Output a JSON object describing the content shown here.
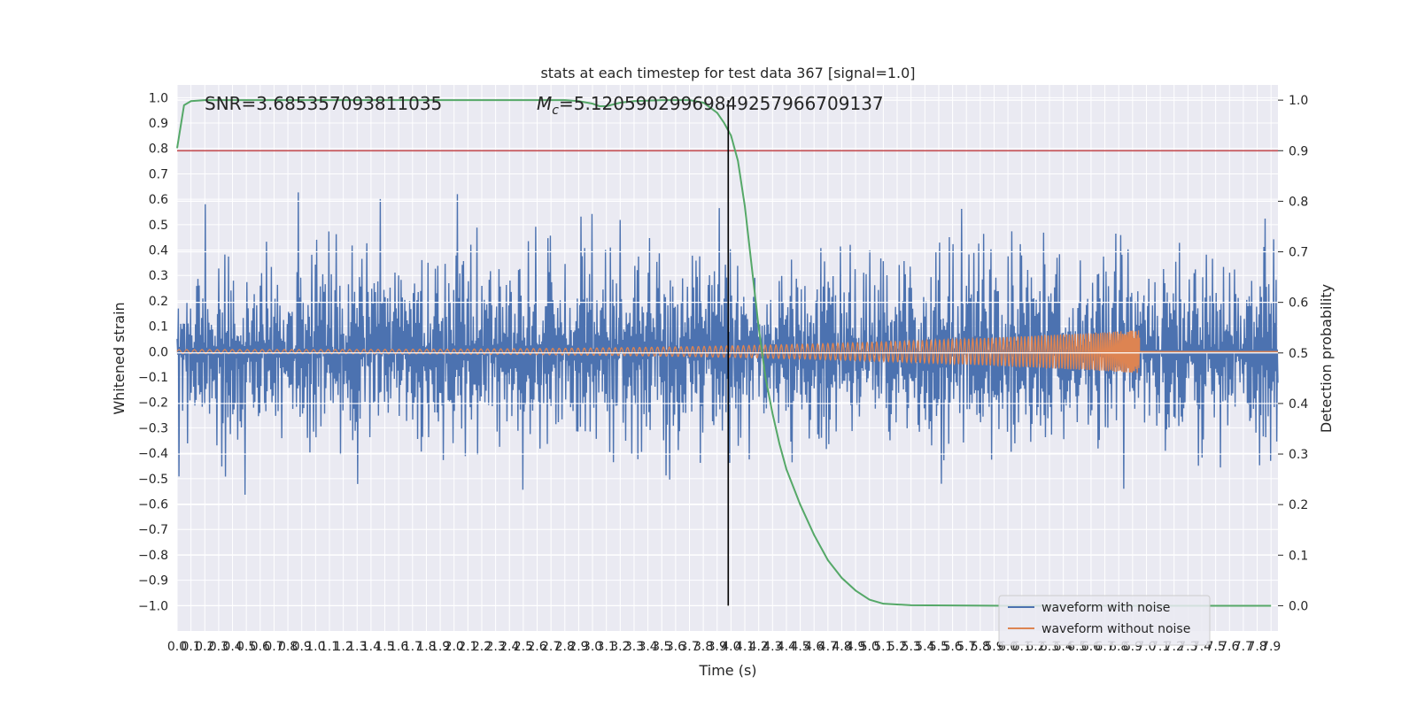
{
  "chart_data": {
    "type": "line",
    "title": "stats at each timestep for test data 367 [signal=1.0]",
    "xlabel": "Time (s)",
    "ylabel": "Whitened strain",
    "ylabel_right": "Detection probability",
    "xlim": [
      0.0,
      7.95
    ],
    "ylim": [
      -1.1,
      1.05
    ],
    "ylim_right": [
      -0.05,
      1.03
    ],
    "x_ticks": [
      "0.0",
      "0.1",
      "0.2",
      "0.3",
      "0.4",
      "0.5",
      "0.6",
      "0.7",
      "0.8",
      "0.9",
      "1.0",
      "1.1",
      "1.2",
      "1.3",
      "1.4",
      "1.5",
      "1.6",
      "1.7",
      "1.8",
      "1.9",
      "2.0",
      "2.1",
      "2.2",
      "2.3",
      "2.4",
      "2.5",
      "2.6",
      "2.7",
      "2.8",
      "2.9",
      "3.0",
      "3.1",
      "3.2",
      "3.3",
      "3.4",
      "3.5",
      "3.6",
      "3.7",
      "3.8",
      "3.9",
      "4.0",
      "4.1",
      "4.2",
      "4.3",
      "4.4",
      "4.5",
      "4.6",
      "4.7",
      "4.8",
      "4.9",
      "5.0",
      "5.1",
      "5.2",
      "5.3",
      "5.4",
      "5.5",
      "5.6",
      "5.7",
      "5.8",
      "5.9",
      "6.0",
      "6.1",
      "6.2",
      "6.3",
      "6.4",
      "6.5",
      "6.6",
      "6.7",
      "6.8",
      "6.9",
      "7.0",
      "7.1",
      "7.2",
      "7.3",
      "7.4",
      "7.5",
      "7.6",
      "7.7",
      "7.8",
      "7.9"
    ],
    "y_ticks": [
      "1.0",
      "0.9",
      "0.8",
      "0.7",
      "0.6",
      "0.5",
      "0.4",
      "0.3",
      "0.2",
      "0.1",
      "0.0",
      "−0.1",
      "−0.2",
      "−0.3",
      "−0.4",
      "−0.5",
      "−0.6",
      "−0.7",
      "−0.8",
      "−0.9",
      "−1.0"
    ],
    "y_ticks_right": [
      "1.0",
      "0.9",
      "0.8",
      "0.7",
      "0.6",
      "0.5",
      "0.4",
      "0.3",
      "0.2",
      "0.1",
      "0.0"
    ],
    "annotations": {
      "snr": "SNR=3.685357093811035",
      "mc_prefix": "M",
      "mc_sub": "c",
      "mc_value": "=5.12059029969849257966709137"
    },
    "threshold_right": 0.9,
    "merger_time": 3.98,
    "signal_end_time": 6.95,
    "series": [
      {
        "name": "waveform with noise",
        "color": "#4c72b0",
        "axis": "left",
        "kind": "noise",
        "amplitude_sd": 0.2,
        "samples": 1800
      },
      {
        "name": "waveform without noise",
        "color": "#dd8452",
        "axis": "left",
        "kind": "chirp",
        "start_amplitude": 0.008,
        "end_amplitude": 0.085,
        "end_time": 6.95
      },
      {
        "name": "detection probability",
        "color": "#55a868",
        "axis": "right",
        "x": [
          0.0,
          0.05,
          0.1,
          0.2,
          0.5,
          1.0,
          2.0,
          2.8,
          2.9,
          3.0,
          3.05,
          3.1,
          3.2,
          3.3,
          3.5,
          3.7,
          3.8,
          3.9,
          3.95,
          4.0,
          4.05,
          4.1,
          4.15,
          4.2,
          4.25,
          4.3,
          4.35,
          4.4,
          4.5,
          4.6,
          4.7,
          4.8,
          4.9,
          5.0,
          5.1,
          5.3,
          6.0,
          7.0,
          7.9
        ],
        "y": [
          0.905,
          0.99,
          0.998,
          1.0,
          1.0,
          1.0,
          1.0,
          1.0,
          0.998,
          0.993,
          0.988,
          0.988,
          0.995,
          0.998,
          1.0,
          1.0,
          0.995,
          0.975,
          0.955,
          0.93,
          0.88,
          0.79,
          0.67,
          0.55,
          0.45,
          0.38,
          0.32,
          0.27,
          0.2,
          0.14,
          0.09,
          0.055,
          0.03,
          0.012,
          0.004,
          0.001,
          0.0,
          0.0,
          0.0
        ]
      }
    ],
    "legend": {
      "placement": "lower-right",
      "entries": [
        {
          "label": "waveform with noise",
          "color": "#4c72b0"
        },
        {
          "label": "waveform without noise",
          "color": "#dd8452"
        }
      ]
    },
    "grid": true,
    "colors": {
      "background": "#eaeaf2",
      "grid": "#ffffff",
      "threshold": "#c44e52",
      "merger": "#000000"
    }
  }
}
